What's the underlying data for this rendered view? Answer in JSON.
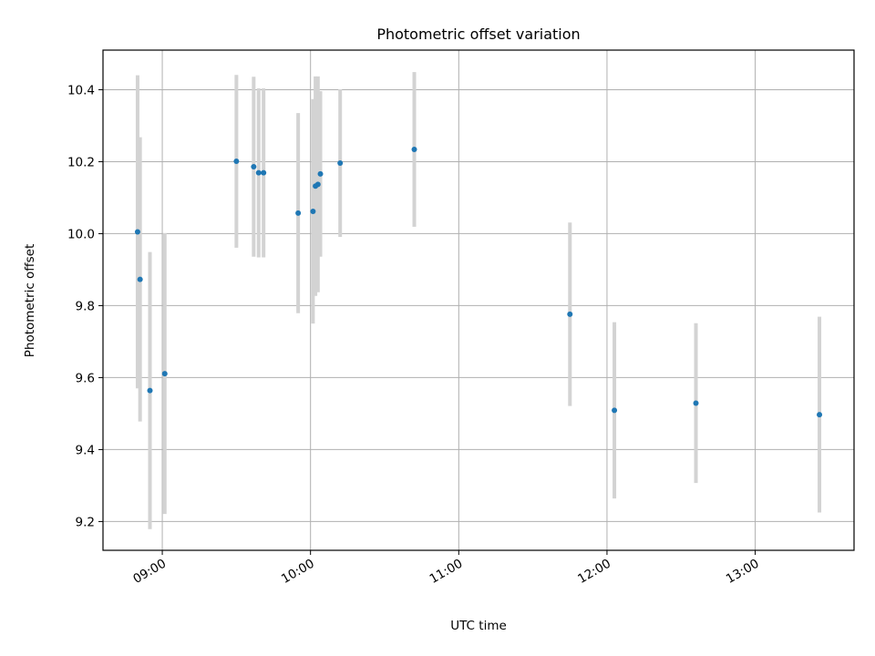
{
  "chart_data": {
    "type": "scatter",
    "title": "Photometric offset variation",
    "xlabel": "UTC time",
    "ylabel": "Photometric offset",
    "x_axis": {
      "kind": "time",
      "range": [
        "08:36",
        "13:40"
      ],
      "ticks": [
        "09:00",
        "10:00",
        "11:00",
        "12:00",
        "13:00"
      ]
    },
    "y_axis": {
      "range": [
        9.12,
        10.51
      ],
      "ticks": [
        "9.2",
        "9.4",
        "9.6",
        "9.8",
        "10.0",
        "10.2",
        "10.4"
      ]
    },
    "grid": true,
    "series": [
      {
        "marker_color": "#1f77b4",
        "errorbar_color": "#d3d3d3",
        "points": [
          {
            "x": "08:50",
            "y": 10.005,
            "err": 0.435
          },
          {
            "x": "08:51",
            "y": 9.873,
            "err": 0.395
          },
          {
            "x": "08:55",
            "y": 9.564,
            "err": 0.385
          },
          {
            "x": "09:01",
            "y": 9.611,
            "err": 0.39
          },
          {
            "x": "09:30",
            "y": 10.201,
            "err": 0.24
          },
          {
            "x": "09:37",
            "y": 10.186,
            "err": 0.25
          },
          {
            "x": "09:39",
            "y": 10.169,
            "err": 0.235
          },
          {
            "x": "09:41",
            "y": 10.169,
            "err": 0.235
          },
          {
            "x": "09:55",
            "y": 10.057,
            "err": 0.278
          },
          {
            "x": "10:01",
            "y": 10.062,
            "err": 0.312
          },
          {
            "x": "10:02",
            "y": 10.132,
            "err": 0.305
          },
          {
            "x": "10:03",
            "y": 10.137,
            "err": 0.3
          },
          {
            "x": "10:04",
            "y": 10.166,
            "err": 0.23
          },
          {
            "x": "10:12",
            "y": 10.196,
            "err": 0.205
          },
          {
            "x": "10:42",
            "y": 10.234,
            "err": 0.215
          },
          {
            "x": "11:45",
            "y": 9.776,
            "err": 0.255
          },
          {
            "x": "12:03",
            "y": 9.509,
            "err": 0.245
          },
          {
            "x": "12:36",
            "y": 9.529,
            "err": 0.222
          },
          {
            "x": "13:26",
            "y": 9.497,
            "err": 0.272
          }
        ]
      }
    ]
  }
}
